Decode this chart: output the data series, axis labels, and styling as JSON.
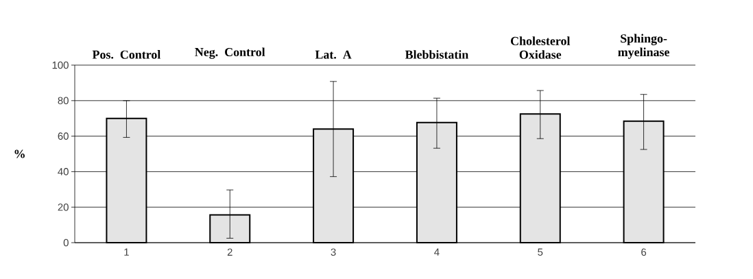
{
  "chart_data": {
    "type": "bar",
    "ylabel": "%",
    "categories": [
      "1",
      "2",
      "3",
      "4",
      "5",
      "6"
    ],
    "values": [
      70,
      15.6,
      64,
      67.7,
      72.5,
      68.4
    ],
    "errors": [
      [
        59.3,
        80
      ],
      [
        2.5,
        29.7
      ],
      [
        37.2,
        90.8
      ],
      [
        53.2,
        81.4
      ],
      [
        58.6,
        85.7
      ],
      [
        52.5,
        83.5
      ]
    ],
    "color": "#e4e4e4",
    "ylim": [
      0,
      100
    ],
    "yticks": [
      0,
      20,
      40,
      60,
      80,
      100
    ],
    "grid": "y",
    "annotations": [
      "Pos. Control",
      "Neg. Control",
      "Lat. A",
      "Blebbistatin",
      "Cholesterol Oxidase",
      "Sphingo-myelinase"
    ]
  }
}
